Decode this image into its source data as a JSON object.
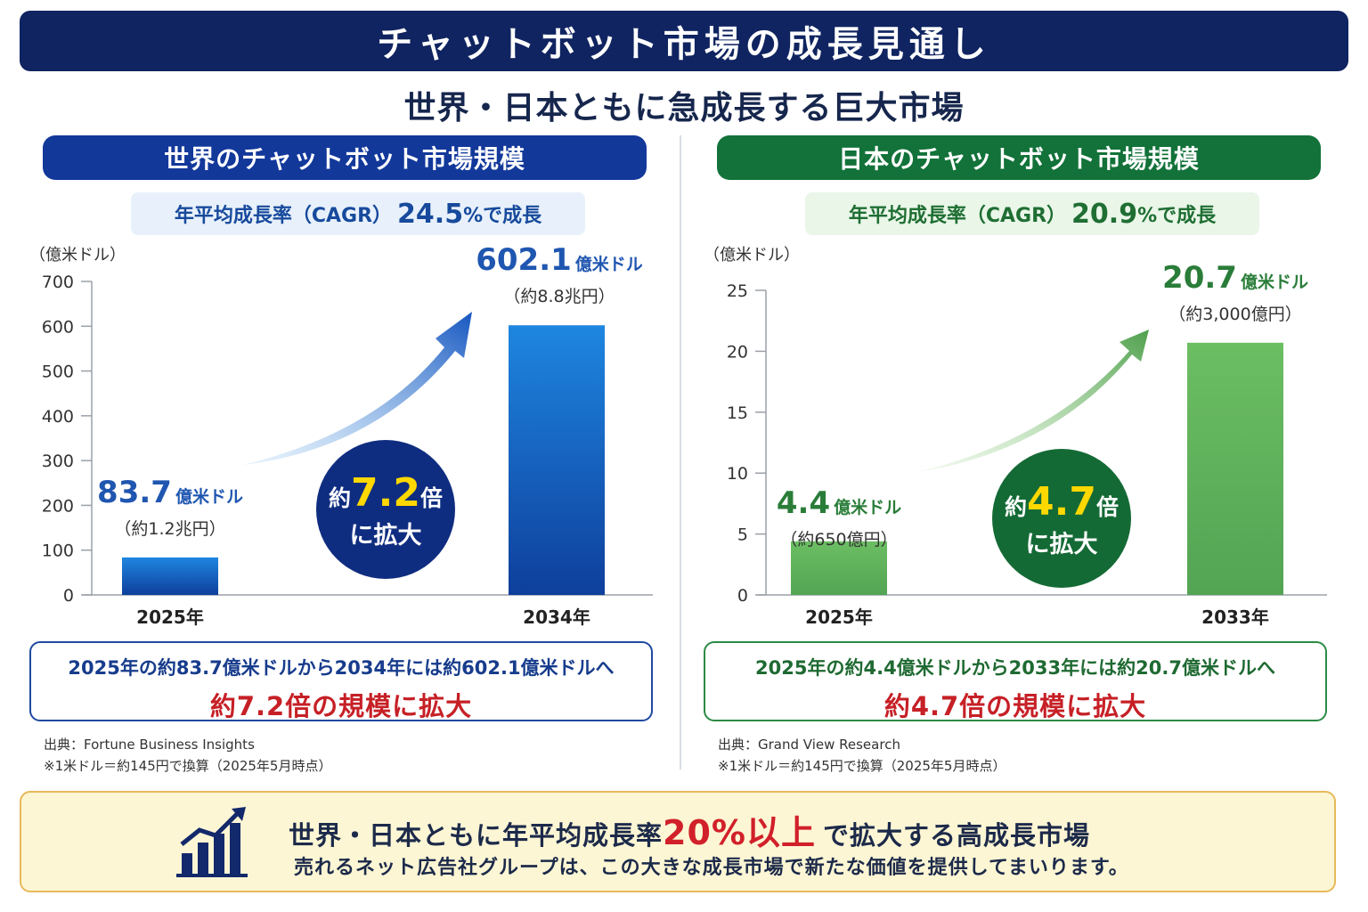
{
  "title": "チャットボット市場の成長見通し",
  "subtitle": "世界・日本ともに急成長する巨大市場",
  "colors": {
    "navy": "#0f2460",
    "blue": "#1e6fd0",
    "green": "#5cae5a",
    "red": "#c62026",
    "yellow": "#ffd800"
  },
  "panels": [
    {
      "header": "世界のチャットボット市場規模",
      "cagr_prefix": "年平均成長率（CAGR）",
      "cagr_rate": "24.5",
      "cagr_suffix": "%で成長",
      "unit_label": "（億米ドル）",
      "growth_prefix": "約",
      "growth_multiple": "7.2",
      "growth_suffix": "倍",
      "growth_line2": "に拡大",
      "summary_line1": "2025年の約83.7億米ドルから2034年には約602.1億米ドルへ",
      "summary_line2": "約7.2倍の規模に拡大",
      "source_line1": "出典：Fortune Business Insights",
      "source_line2": "※1米ドル＝約145円で換算（2025年5月時点）"
    },
    {
      "header": "日本のチャットボット市場規模",
      "cagr_prefix": "年平均成長率（CAGR）",
      "cagr_rate": "20.9",
      "cagr_suffix": "%で成長",
      "unit_label": "（億米ドル）",
      "growth_prefix": "約",
      "growth_multiple": "4.7",
      "growth_suffix": "倍",
      "growth_line2": "に拡大",
      "summary_line1": "2025年の約4.4億米ドルから2033年には約20.7億米ドルへ",
      "summary_line2": "約4.7倍の規模に拡大",
      "source_line1": "出典：Grand View Research",
      "source_line2": "※1米ドル＝約145円で換算（2025年5月時点）"
    }
  ],
  "chart_data": [
    {
      "type": "bar",
      "title": "世界のチャットボット市場規模",
      "ylabel": "（億米ドル）",
      "categories": [
        "2025年",
        "2034年"
      ],
      "values": [
        83.7,
        602.1
      ],
      "value_labels": [
        "83.7",
        "602.1"
      ],
      "value_unit": "億米ドル",
      "yen_labels": [
        "（約1.2兆円）",
        "（約8.8兆円）"
      ],
      "ylim": [
        0,
        700
      ],
      "yticks": [
        0,
        100,
        200,
        300,
        400,
        500,
        600,
        700
      ],
      "grid": false
    },
    {
      "type": "bar",
      "title": "日本のチャットボット市場規模",
      "ylabel": "（億米ドル）",
      "categories": [
        "2025年",
        "2033年"
      ],
      "values": [
        4.4,
        20.7
      ],
      "value_labels": [
        "4.4",
        "20.7"
      ],
      "value_unit": "億米ドル",
      "yen_labels": [
        "（約650億円）",
        "（約3,000億円）"
      ],
      "ylim": [
        0,
        25
      ],
      "yticks": [
        0,
        5,
        10,
        15,
        20,
        25
      ],
      "grid": false
    }
  ],
  "banner": {
    "line1_pre": "世界・日本ともに年平均成長率",
    "line1_hl": "20%以上",
    "line1_post": "で拡大する高成長市場",
    "line2": "売れるネット広告社グループは、この大きな成長市場で新たな価値を提供してまいります。",
    "icon": "growth-chart-icon"
  }
}
